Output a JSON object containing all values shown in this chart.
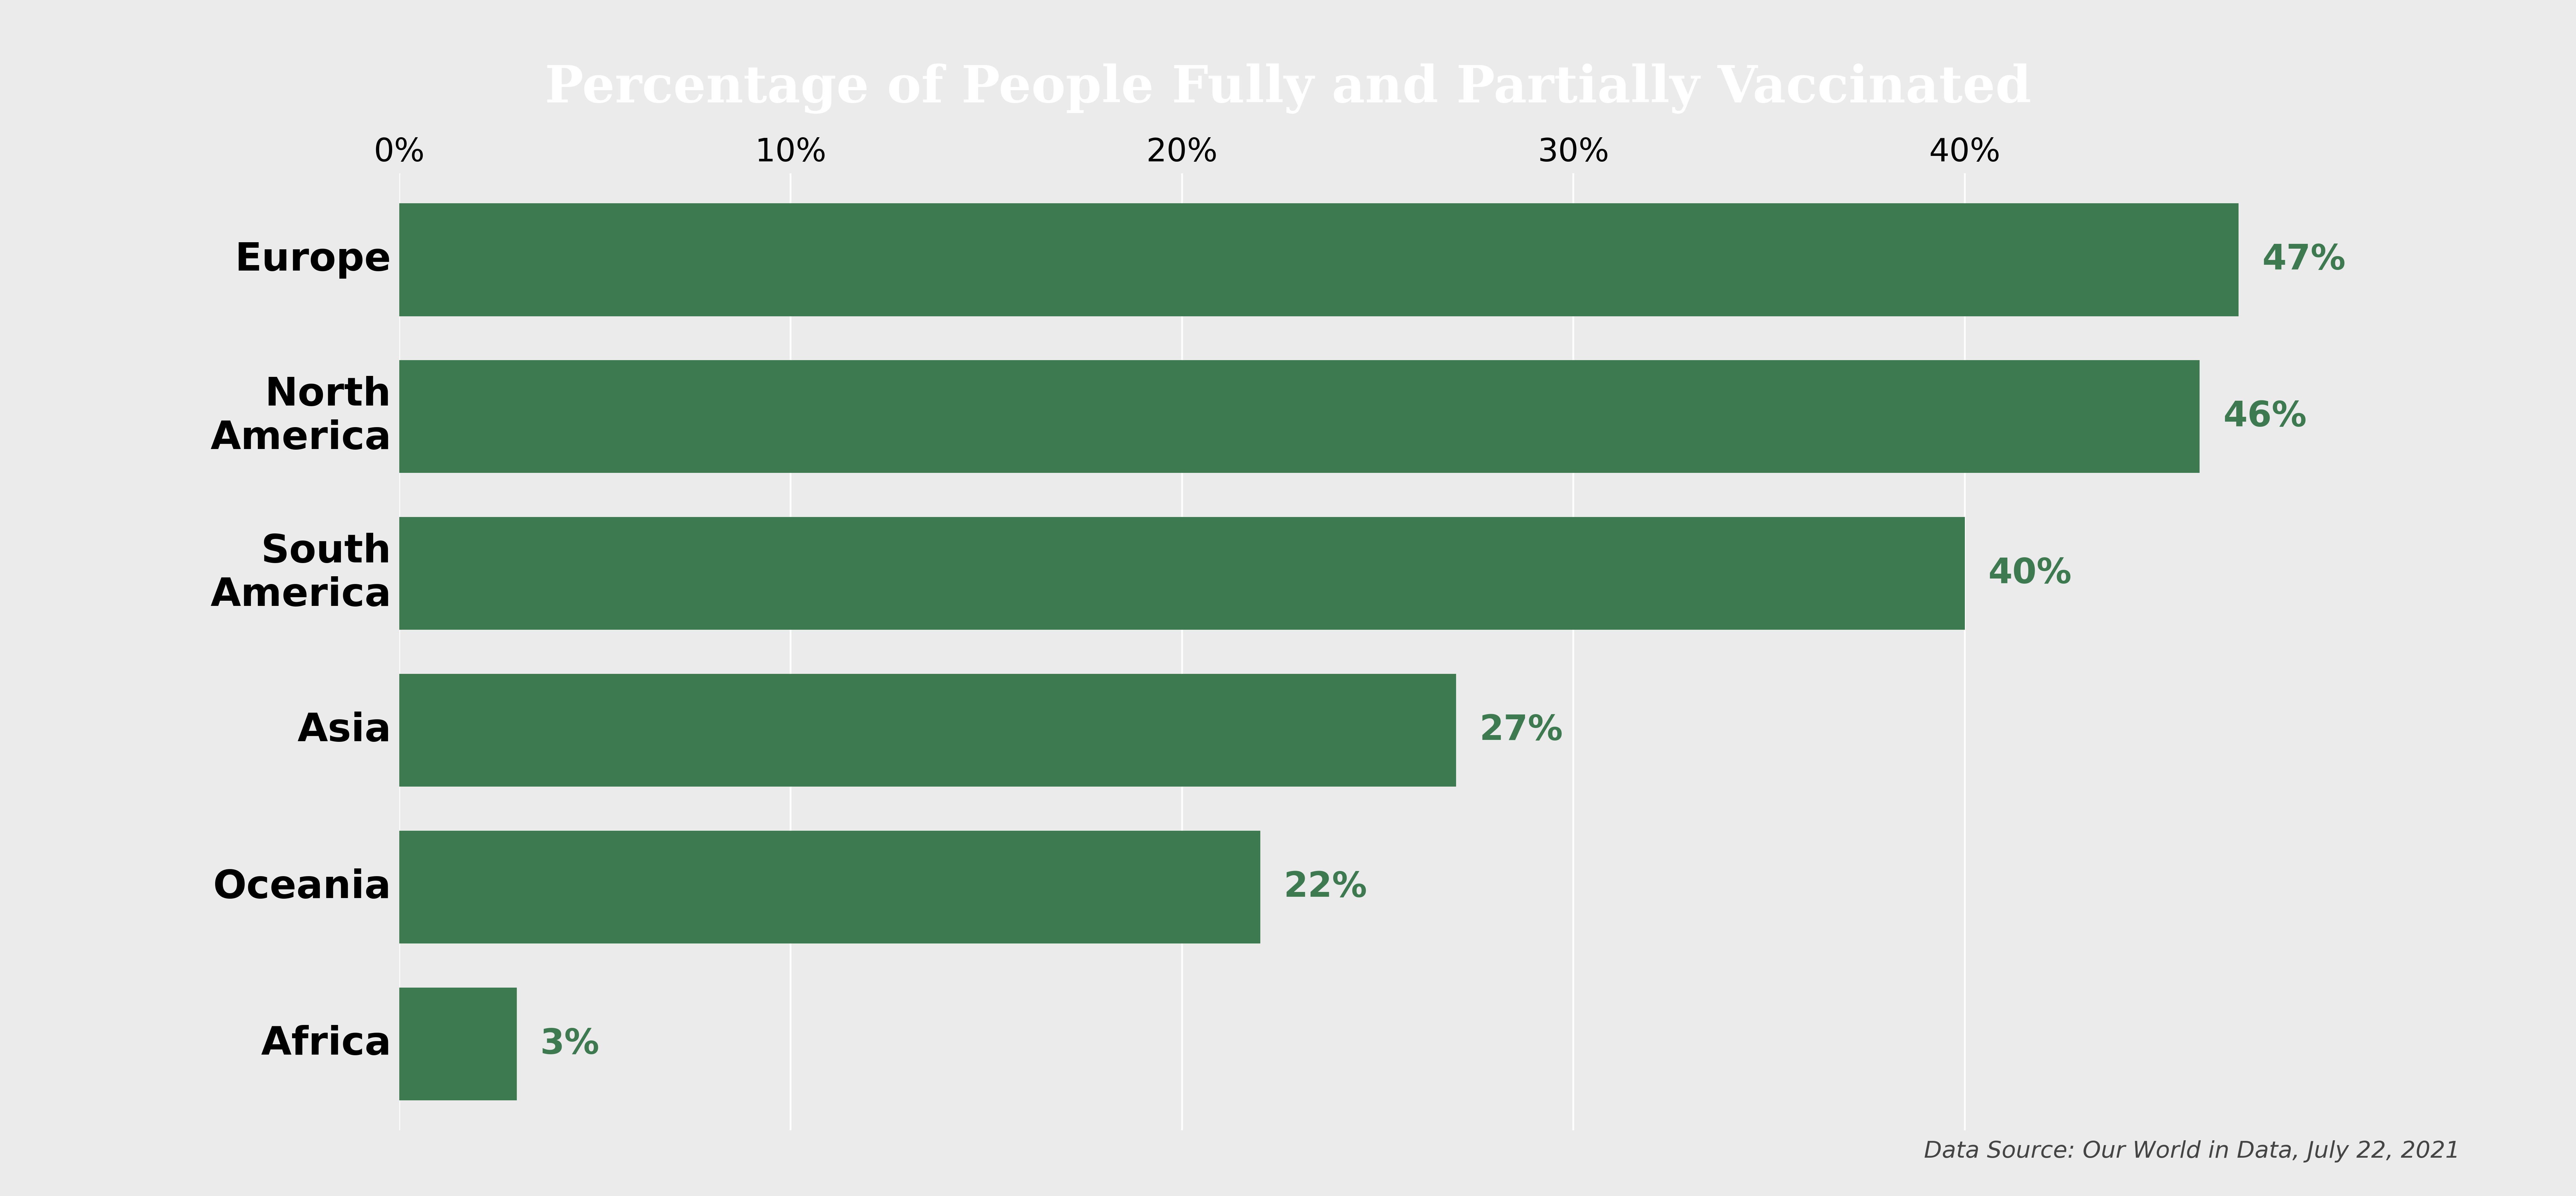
{
  "title": "Percentage of People Fully and Partially Vaccinated",
  "categories": [
    "Europe",
    "North\nAmerica",
    "South\nAmerica",
    "Asia",
    "Oceania",
    "Africa"
  ],
  "values": [
    47,
    46,
    40,
    27,
    22,
    3
  ],
  "bar_color": "#3d7a4f",
  "label_color": "#3d7a4f",
  "background_color": "#ebebeb",
  "title_bg_color": "#4a7a9b",
  "title_text_color": "#ffffff",
  "xlabel_ticks": [
    0,
    10,
    20,
    30,
    40
  ],
  "xlim": [
    0,
    52
  ],
  "data_source": "Data Source: Our World in Data, July 22, 2021",
  "title_fontsize": 115,
  "label_fontsize": 78,
  "tick_fontsize": 72,
  "ytick_fontsize": 88,
  "source_fontsize": 52,
  "grid_color": "#ffffff",
  "grid_linewidth": 4.0,
  "bar_height": 0.72
}
